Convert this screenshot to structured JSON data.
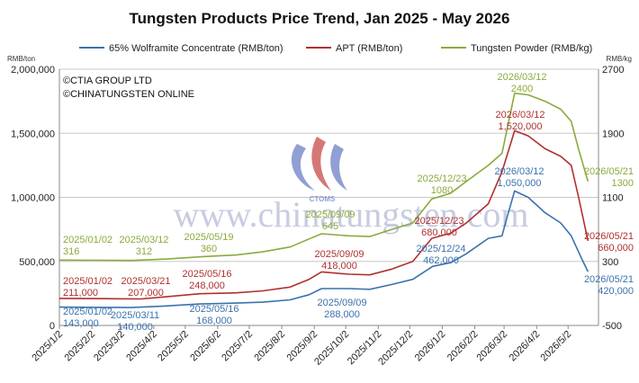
{
  "chart_data": {
    "type": "line",
    "title": "Tungsten Products Price Trend, Jan 2025 - May 2026",
    "y_left_unit": "RMB/ton",
    "y_right_unit": "RMB/kg",
    "y_left_ticks": [
      "0",
      "500,000",
      "1,000,000",
      "1,500,000",
      "2,000,000"
    ],
    "y_left_range": [
      0,
      2000000
    ],
    "y_right_ticks": [
      "-500",
      "300",
      "1100",
      "1900",
      "2700"
    ],
    "y_right_range": [
      -500,
      2700
    ],
    "x_ticks": [
      "2025/1/2",
      "2025/2/2",
      "2025/3/2",
      "2025/4/2",
      "2025/5/2",
      "2025/6/2",
      "2025/7/2",
      "2025/8/2",
      "2025/9/2",
      "2025/10/2",
      "2025/11/2",
      "2025/12/2",
      "2026/1/2",
      "2026/2/2",
      "2026/3/2",
      "2026/4/2",
      "2026/5/2"
    ],
    "grid": "horizontal",
    "legend_position": "top",
    "copyright": [
      "©CTIA GROUP LTD",
      "©CHINATUNGSTEN ONLINE"
    ],
    "watermark": "www.chinatungsten.com",
    "logo_text": "CTOMS",
    "series": [
      {
        "name": "65% Wolframite Concentrate (RMB/ton)",
        "axis": "left",
        "color": "#3a72ad",
        "points": [
          [
            "2025/01/02",
            143000
          ],
          [
            "2025/02/15",
            141000
          ],
          [
            "2025/03/11",
            140000
          ],
          [
            "2025/04/10",
            150000
          ],
          [
            "2025/05/16",
            168000
          ],
          [
            "2025/06/20",
            175000
          ],
          [
            "2025/07/15",
            182000
          ],
          [
            "2025/08/10",
            200000
          ],
          [
            "2025/08/28",
            240000
          ],
          [
            "2025/09/09",
            288000
          ],
          [
            "2025/10/05",
            288000
          ],
          [
            "2025/10/25",
            282000
          ],
          [
            "2025/11/15",
            320000
          ],
          [
            "2025/12/05",
            360000
          ],
          [
            "2025/12/24",
            462000
          ],
          [
            "2026/01/10",
            490000
          ],
          [
            "2026/01/25",
            560000
          ],
          [
            "2026/02/15",
            680000
          ],
          [
            "2026/02/28",
            700000
          ],
          [
            "2026/03/05",
            850000
          ],
          [
            "2026/03/12",
            1050000
          ],
          [
            "2026/03/25",
            1000000
          ],
          [
            "2026/04/10",
            880000
          ],
          [
            "2026/04/25",
            800000
          ],
          [
            "2026/05/05",
            700000
          ],
          [
            "2026/05/15",
            520000
          ],
          [
            "2026/05/21",
            420000
          ]
        ]
      },
      {
        "name": "APT (RMB/ton)",
        "axis": "left",
        "color": "#b0302f",
        "points": [
          [
            "2025/01/02",
            211000
          ],
          [
            "2025/02/15",
            209000
          ],
          [
            "2025/03/21",
            207000
          ],
          [
            "2025/04/15",
            225000
          ],
          [
            "2025/05/16",
            248000
          ],
          [
            "2025/06/20",
            255000
          ],
          [
            "2025/07/15",
            270000
          ],
          [
            "2025/08/10",
            300000
          ],
          [
            "2025/08/28",
            360000
          ],
          [
            "2025/09/09",
            418000
          ],
          [
            "2025/10/05",
            400000
          ],
          [
            "2025/10/25",
            395000
          ],
          [
            "2025/11/15",
            440000
          ],
          [
            "2025/12/05",
            500000
          ],
          [
            "2025/12/23",
            680000
          ],
          [
            "2026/01/10",
            720000
          ],
          [
            "2026/01/25",
            800000
          ],
          [
            "2026/02/15",
            950000
          ],
          [
            "2026/02/28",
            1200000
          ],
          [
            "2026/03/12",
            1520000
          ],
          [
            "2026/03/25",
            1480000
          ],
          [
            "2026/04/10",
            1380000
          ],
          [
            "2026/04/25",
            1320000
          ],
          [
            "2026/05/05",
            1250000
          ],
          [
            "2026/05/12",
            1000000
          ],
          [
            "2026/05/21",
            660000
          ]
        ]
      },
      {
        "name": "Tungsten Powder (RMB/kg)",
        "axis": "right",
        "color": "#8aaa3c",
        "points": [
          [
            "2025/01/02",
            316
          ],
          [
            "2025/02/15",
            314
          ],
          [
            "2025/03/12",
            312
          ],
          [
            "2025/04/15",
            330
          ],
          [
            "2025/05/19",
            360
          ],
          [
            "2025/06/20",
            380
          ],
          [
            "2025/07/15",
            420
          ],
          [
            "2025/08/10",
            480
          ],
          [
            "2025/08/28",
            580
          ],
          [
            "2025/09/09",
            645
          ],
          [
            "2025/10/05",
            620
          ],
          [
            "2025/10/25",
            610
          ],
          [
            "2025/11/15",
            700
          ],
          [
            "2025/12/05",
            780
          ],
          [
            "2025/12/23",
            1080
          ],
          [
            "2026/01/10",
            1150
          ],
          [
            "2026/01/25",
            1300
          ],
          [
            "2026/02/15",
            1500
          ],
          [
            "2026/02/28",
            1650
          ],
          [
            "2026/03/12",
            2400
          ],
          [
            "2026/03/25",
            2380
          ],
          [
            "2026/04/10",
            2300
          ],
          [
            "2026/04/25",
            2200
          ],
          [
            "2026/05/05",
            2050
          ],
          [
            "2026/05/12",
            1700
          ],
          [
            "2026/05/21",
            1300
          ]
        ]
      }
    ],
    "annotations": [
      {
        "series": 0,
        "date": "2025/01/02",
        "value": 143000,
        "lines": [
          "2025/01/02",
          "143,000"
        ]
      },
      {
        "series": 0,
        "date": "2025/03/11",
        "value": 140000,
        "lines": [
          "2025/03/11",
          "140,000"
        ]
      },
      {
        "series": 0,
        "date": "2025/05/16",
        "value": 168000,
        "lines": [
          "2025/05/16",
          "168,000"
        ]
      },
      {
        "series": 0,
        "date": "2025/09/09",
        "value": 288000,
        "lines": [
          "2025/09/09",
          "288,000"
        ]
      },
      {
        "series": 0,
        "date": "2025/12/24",
        "value": 462000,
        "lines": [
          "2025/12/24",
          "462,000"
        ]
      },
      {
        "series": 0,
        "date": "2026/03/12",
        "value": 1050000,
        "lines": [
          "2026/03/12",
          "1,050,000"
        ]
      },
      {
        "series": 0,
        "date": "2026/05/21",
        "value": 420000,
        "lines": [
          "2026/05/21",
          "420,000"
        ]
      },
      {
        "series": 1,
        "date": "2025/01/02",
        "value": 211000,
        "lines": [
          "2025/01/02",
          "211,000"
        ]
      },
      {
        "series": 1,
        "date": "2025/03/21",
        "value": 207000,
        "lines": [
          "2025/03/21",
          "207,000"
        ]
      },
      {
        "series": 1,
        "date": "2025/05/16",
        "value": 248000,
        "lines": [
          "2025/05/16",
          "248,000"
        ]
      },
      {
        "series": 1,
        "date": "2025/09/09",
        "value": 418000,
        "lines": [
          "2025/09/09",
          "418,000"
        ]
      },
      {
        "series": 1,
        "date": "2025/12/23",
        "value": 680000,
        "lines": [
          "2025/12/23",
          "680,000"
        ]
      },
      {
        "series": 1,
        "date": "2026/03/12",
        "value": 1520000,
        "lines": [
          "2026/03/12",
          "1,520,000"
        ]
      },
      {
        "series": 1,
        "date": "2026/05/21",
        "value": 660000,
        "lines": [
          "2026/05/21",
          "660,000"
        ]
      },
      {
        "series": 2,
        "date": "2025/01/02",
        "value": 316,
        "lines": [
          "2025/01/02",
          "316"
        ]
      },
      {
        "series": 2,
        "date": "2025/03/12",
        "value": 312,
        "lines": [
          "2025/03/12",
          "312"
        ]
      },
      {
        "series": 2,
        "date": "2025/05/19",
        "value": 360,
        "lines": [
          "2025/05/19",
          "360"
        ]
      },
      {
        "series": 2,
        "date": "2025/09/09",
        "value": 645,
        "lines": [
          "2025/09/09",
          "645"
        ]
      },
      {
        "series": 2,
        "date": "2025/12/23",
        "value": 1080,
        "lines": [
          "2025/12/23",
          "1080"
        ]
      },
      {
        "series": 2,
        "date": "2026/03/12",
        "value": 2400,
        "lines": [
          "2026/03/12",
          "2400"
        ]
      },
      {
        "series": 2,
        "date": "2026/05/21",
        "value": 1300,
        "lines": [
          "2026/05/21",
          "1300"
        ]
      }
    ]
  }
}
